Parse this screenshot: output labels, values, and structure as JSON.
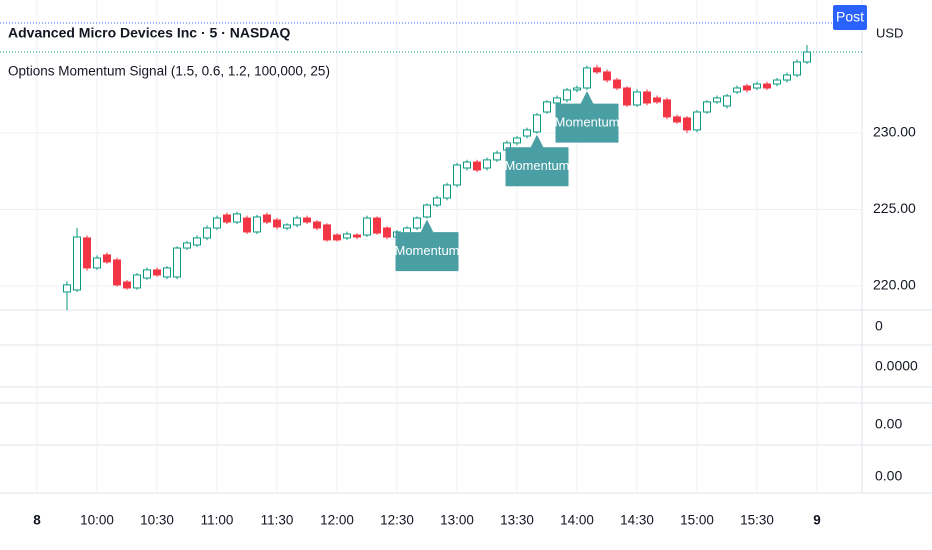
{
  "chart_data": {
    "type": "candlestick",
    "title": "Advanced Micro Devices Inc · 5 · NASDAQ",
    "indicator": "Options Momentum Signal (1.5, 0.6, 1.2, 100,000, 25)",
    "currency": "USD",
    "post_label": "Post",
    "post_price": 237.19,
    "up_color": "#089981",
    "down_color": "#f23645",
    "annotation_color": "#4a9fa5",
    "grid": true,
    "open": [
      219.61,
      219.74,
      223.14,
      221.18,
      222.03,
      221.7,
      220.26,
      219.87,
      220.52,
      221.05,
      220.59,
      220.59,
      222.48,
      222.68,
      223.14,
      223.79,
      224.64,
      224.18,
      224.44,
      223.53,
      224.64,
      224.31,
      223.79,
      223.99,
      224.44,
      224.18,
      223.99,
      223.33,
      223.14,
      223.33,
      223.33,
      224.44,
      223.79,
      223.2,
      223.4,
      223.79,
      224.51,
      225.29,
      225.75,
      226.6,
      227.71,
      228.1,
      227.71,
      228.24,
      228.89,
      229.35,
      229.8,
      230.07,
      231.37,
      231.96,
      232.16,
      232.81,
      232.94,
      234.25,
      233.99,
      233.46,
      232.94,
      231.83,
      232.68,
      232.29,
      232.16,
      231.05,
      230.98,
      230.2,
      231.37,
      232.03,
      231.76,
      232.68,
      233.07,
      232.94,
      233.2,
      233.2,
      233.46,
      233.79,
      234.64
    ],
    "high": [
      220.3,
      223.79,
      223.3,
      222.0,
      222.2,
      221.85,
      220.4,
      220.85,
      221.2,
      221.2,
      221.3,
      222.6,
      222.95,
      223.3,
      223.95,
      224.6,
      224.8,
      224.85,
      224.6,
      224.65,
      224.8,
      224.45,
      224.1,
      224.6,
      224.6,
      224.3,
      224.1,
      223.45,
      223.55,
      223.45,
      224.6,
      224.55,
      223.9,
      223.65,
      223.9,
      224.55,
      225.4,
      225.9,
      226.75,
      228.05,
      228.25,
      228.25,
      228.4,
      228.85,
      229.5,
      229.8,
      230.35,
      231.3,
      232.15,
      232.45,
      232.95,
      233.1,
      234.4,
      234.45,
      234.15,
      233.6,
      233.05,
      232.85,
      232.85,
      232.45,
      232.3,
      231.2,
      231.1,
      231.5,
      232.15,
      232.45,
      232.55,
      233.1,
      233.2,
      233.35,
      233.35,
      233.6,
      233.95,
      234.8,
      235.75
    ],
    "low": [
      218.43,
      219.6,
      221.0,
      221.05,
      221.45,
      219.95,
      219.75,
      219.75,
      220.4,
      220.6,
      220.45,
      220.45,
      222.35,
      222.55,
      223.0,
      223.65,
      224.05,
      224.05,
      223.4,
      223.4,
      224.05,
      223.7,
      223.65,
      223.85,
      224.05,
      223.65,
      222.9,
      222.9,
      223.0,
      223.05,
      223.2,
      223.35,
      223.05,
      223.05,
      223.25,
      223.65,
      224.4,
      225.15,
      225.6,
      226.45,
      227.55,
      227.45,
      227.55,
      228.1,
      228.75,
      229.2,
      229.65,
      229.95,
      231.25,
      231.8,
      232.0,
      232.65,
      232.8,
      233.85,
      233.3,
      232.8,
      231.7,
      231.7,
      231.8,
      231.9,
      230.9,
      230.6,
      230.0,
      230.05,
      231.25,
      231.9,
      231.6,
      232.55,
      232.65,
      232.8,
      232.8,
      233.05,
      233.3,
      233.65,
      234.5
    ],
    "close": [
      220.07,
      223.2,
      221.18,
      221.83,
      221.57,
      220.07,
      219.87,
      220.72,
      221.05,
      220.72,
      221.18,
      222.48,
      222.81,
      223.14,
      223.79,
      224.44,
      224.18,
      224.71,
      223.53,
      224.51,
      224.18,
      223.86,
      223.99,
      224.44,
      224.18,
      223.79,
      223.01,
      223.01,
      223.4,
      223.2,
      224.44,
      223.46,
      223.2,
      223.53,
      223.79,
      224.44,
      225.29,
      225.75,
      226.6,
      227.91,
      228.1,
      227.58,
      228.24,
      228.69,
      229.35,
      229.67,
      230.2,
      231.18,
      232.03,
      232.29,
      232.81,
      232.94,
      234.25,
      233.99,
      233.46,
      232.94,
      231.83,
      232.68,
      231.96,
      232.03,
      231.05,
      230.72,
      230.2,
      231.37,
      232.03,
      232.29,
      232.42,
      232.94,
      232.81,
      233.2,
      232.94,
      233.46,
      233.79,
      234.64,
      235.29
    ],
    "annotations": [
      {
        "x": 36,
        "text": "Momentum"
      },
      {
        "x": 47,
        "text": "Momentum"
      },
      {
        "x": 52,
        "text": "Momentum"
      }
    ],
    "xlim": [
      -6.7,
      79.5
    ],
    "xticks": [
      {
        "value": -3,
        "label": "8"
      },
      {
        "value": 3,
        "label": "10:00"
      },
      {
        "value": 9,
        "label": "10:30"
      },
      {
        "value": 15,
        "label": "11:00"
      },
      {
        "value": 21,
        "label": "11:30"
      },
      {
        "value": 27,
        "label": "12:00"
      },
      {
        "value": 33,
        "label": "12:30"
      },
      {
        "value": 39,
        "label": "13:00"
      },
      {
        "value": 45,
        "label": "13:30"
      },
      {
        "value": 51,
        "label": "14:00"
      },
      {
        "value": 57,
        "label": "14:30"
      },
      {
        "value": 63,
        "label": "15:00"
      },
      {
        "value": 69,
        "label": "15:30"
      },
      {
        "value": 75,
        "label": "9"
      }
    ],
    "ylim": [
      218.43,
      238.69
    ],
    "yticks": [
      {
        "value": 220,
        "label": "220.00"
      },
      {
        "value": 225,
        "label": "225.00"
      },
      {
        "value": 230,
        "label": "230.00"
      }
    ],
    "pane_labels": [
      "0",
      "0.0000",
      "0.00",
      "0.00"
    ]
  }
}
